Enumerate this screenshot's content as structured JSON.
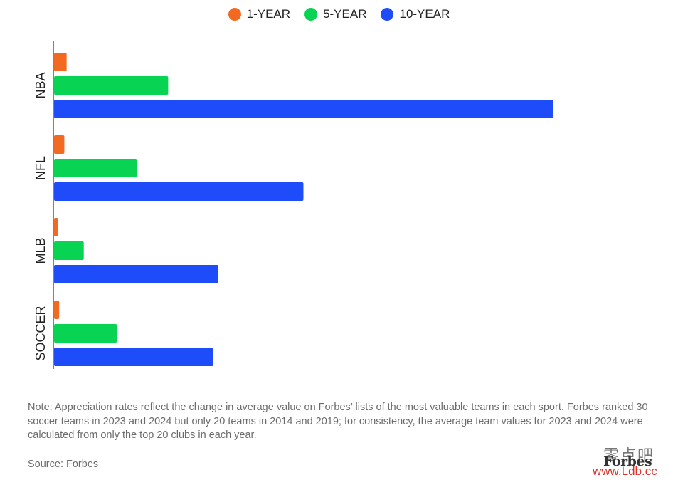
{
  "chart_data": {
    "type": "bar",
    "orientation": "horizontal",
    "categories": [
      "NBA",
      "NFL",
      "MLB",
      "SOCCER"
    ],
    "series": [
      {
        "name": "1-YEAR",
        "color": "#f26a21",
        "values": [
          2.2,
          1.8,
          0.7,
          0.9
        ]
      },
      {
        "name": "5-YEAR",
        "color": "#09d353",
        "values": [
          20.0,
          14.5,
          5.2,
          11.0
        ]
      },
      {
        "name": "10-YEAR",
        "color": "#1f4cf9",
        "values": [
          87.5,
          43.7,
          28.8,
          27.9
        ]
      }
    ],
    "xlim": [
      0,
      100
    ],
    "grid": false,
    "legend": "top-center"
  },
  "note": "Note: Appreciation rates reflect the change in average value on Forbes’ lists of the most valuable teams in each sport. Forbes ranked 30 soccer teams in 2023 and 2024 but only 20 teams in 2014 and 2019; for consistency, the average team values for 2023 and 2024 were calculated from only the top 20 clubs in each year.",
  "source": "Source: Forbes",
  "logo": "Forbes",
  "watermark": {
    "cn": "零点吧",
    "url": "www.Ldb.cc"
  }
}
